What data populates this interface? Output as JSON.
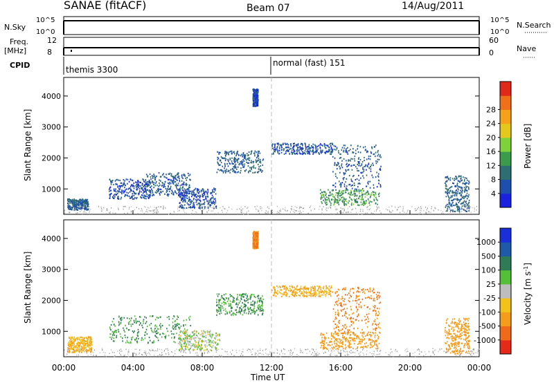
{
  "header": {
    "site": "SANAE (fitACF)",
    "beam": "Beam 07",
    "date": "14/Aug/2011"
  },
  "strips": {
    "nsky_label": "N.Sky",
    "nsky_ticks": [
      "10^5",
      "10^0"
    ],
    "nsearch_label": "N.Search",
    "nsearch_ticks": [
      "10^5",
      "10^0"
    ],
    "freq_label": "Freq.",
    "freq_unit": "[MHz]",
    "freq_ticks": [
      "12",
      "8"
    ],
    "nave_label": "Nave",
    "nave_ticks": [
      "60",
      "0"
    ],
    "cpid_label": "CPID",
    "cpid_segments": [
      {
        "start_hour": 0,
        "text": "themis 3300"
      },
      {
        "start_hour": 12,
        "text": "normal (fast) 151"
      }
    ]
  },
  "x_axis": {
    "label": "Time UT",
    "ticks": [
      "00:00",
      "04:00",
      "08:00",
      "12:00",
      "16:00",
      "20:00",
      "00:00"
    ],
    "range_hours": [
      0,
      24
    ]
  },
  "y_axis": {
    "label": "Slant Range [km]",
    "ticks": [
      "1000",
      "2000",
      "3000",
      "4000"
    ],
    "range_km": [
      180,
      4600
    ]
  },
  "power_colorbar": {
    "label": "Power [dB]",
    "ticks": [
      "4",
      "8",
      "12",
      "16",
      "20",
      "24",
      "28"
    ],
    "colors": [
      "#1a22e0",
      "#1e4fae",
      "#2e6e70",
      "#3c9a4c",
      "#7fd13a",
      "#e4c81c",
      "#f7a11a",
      "#f0701a",
      "#e1291a"
    ]
  },
  "velocity_colorbar": {
    "label": "Velocity [m s",
    "label_sup": "-1",
    "label_close": "]",
    "ticks": [
      "1000",
      "500",
      "100",
      "25",
      "-25",
      "-100",
      "-500",
      "-1000"
    ],
    "colors": [
      "#1a2fd8",
      "#1f5aa8",
      "#2e7b55",
      "#55bf3a",
      "#bdbdbd",
      "#f2c11a",
      "#f59c1a",
      "#f06a1a",
      "#e62a1a"
    ]
  },
  "chart_data": {
    "type": "heatmap",
    "title": "SANAE (fitACF) Beam 07 14/Aug/2011",
    "xlabel": "Time UT",
    "ylabel": "Slant Range [km]",
    "x_range_hours": [
      0,
      24
    ],
    "y_range_km": [
      180,
      4600
    ],
    "panels": [
      {
        "name": "Power",
        "unit": "dB",
        "blobs": [
          {
            "t0": 0.2,
            "t1": 1.4,
            "r0": 300,
            "r1": 650,
            "value": 8
          },
          {
            "t0": 2.6,
            "t1": 5.0,
            "r0": 650,
            "r1": 1300,
            "value": 6
          },
          {
            "t0": 4.7,
            "t1": 7.3,
            "r0": 750,
            "r1": 1500,
            "value": 7
          },
          {
            "t0": 6.6,
            "t1": 8.8,
            "r0": 350,
            "r1": 1000,
            "value": 6
          },
          {
            "t0": 8.8,
            "t1": 11.5,
            "r0": 1500,
            "r1": 2200,
            "value": 8
          },
          {
            "t0": 12.0,
            "t1": 15.5,
            "r0": 2100,
            "r1": 2450,
            "value": 6
          },
          {
            "t0": 15.5,
            "t1": 18.3,
            "r0": 900,
            "r1": 2400,
            "value": 7
          },
          {
            "t0": 14.8,
            "t1": 18.2,
            "r0": 450,
            "r1": 950,
            "value": 14
          },
          {
            "t0": 10.9,
            "t1": 11.2,
            "r0": 3650,
            "r1": 4200,
            "value": 6
          },
          {
            "t0": 22.0,
            "t1": 23.4,
            "r0": 250,
            "r1": 1400,
            "value": 8
          }
        ],
        "colorbar_ticks": [
          4,
          8,
          12,
          16,
          20,
          24,
          28
        ]
      },
      {
        "name": "Velocity",
        "unit": "m s^-1",
        "blobs": [
          {
            "t0": 0.2,
            "t1": 1.6,
            "r0": 300,
            "r1": 800,
            "value": -100
          },
          {
            "t0": 2.6,
            "t1": 7.3,
            "r0": 600,
            "r1": 1500,
            "value": 100
          },
          {
            "t0": 6.6,
            "t1": 9.0,
            "r0": 350,
            "r1": 1000,
            "value": 25
          },
          {
            "t0": 8.8,
            "t1": 11.5,
            "r0": 1500,
            "r1": 2200,
            "value": 100
          },
          {
            "t0": 12.0,
            "t1": 15.5,
            "r0": 2100,
            "r1": 2450,
            "value": -100
          },
          {
            "t0": 15.5,
            "t1": 18.3,
            "r0": 900,
            "r1": 2400,
            "value": -500
          },
          {
            "t0": 14.8,
            "t1": 18.2,
            "r0": 400,
            "r1": 950,
            "value": -300
          },
          {
            "t0": 10.9,
            "t1": 11.2,
            "r0": 3650,
            "r1": 4200,
            "value": -500
          },
          {
            "t0": 22.0,
            "t1": 23.4,
            "r0": 250,
            "r1": 1400,
            "value": -200
          }
        ],
        "colorbar_ticks": [
          1000,
          500,
          100,
          25,
          -25,
          -100,
          -500,
          -1000
        ]
      }
    ]
  }
}
